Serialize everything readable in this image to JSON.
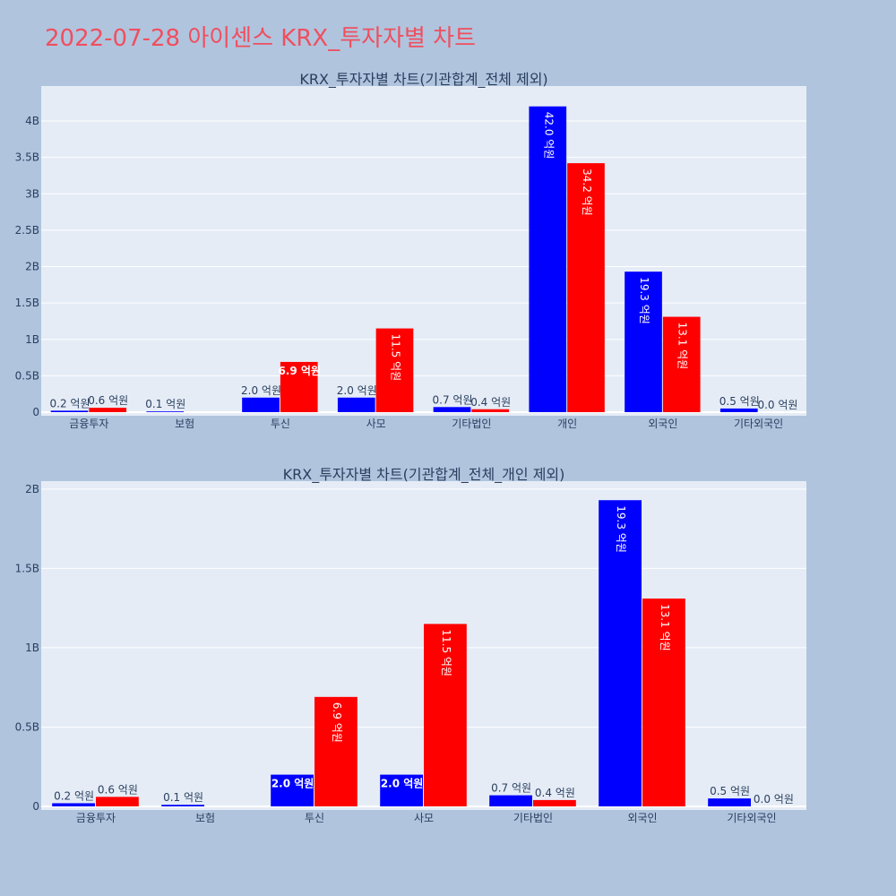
{
  "page": {
    "title": "2022-07-28 아이센스 KRX_투자자별 차트"
  },
  "colors": {
    "background": "#b0c4de",
    "plot_background": "#e5ecf6",
    "series_1": "#0000ff",
    "series_2": "#ff0000",
    "title": "#ef4f5f",
    "text": "#2a3f5f"
  },
  "chart_data": [
    {
      "type": "bar",
      "title": "KRX_투자자별 차트(기관합계_전체 제외)",
      "categories": [
        "금융투자",
        "보험",
        "투신",
        "사모",
        "기타법인",
        "개인",
        "외국인",
        "기타외국인"
      ],
      "series": [
        {
          "color": "#0000ff",
          "values": [
            20000000,
            10000000,
            200000000,
            200000000,
            70000000,
            4200000000,
            1930000000,
            50000000
          ],
          "labels": [
            "0.2 억원",
            "0.1 억원",
            "2.0 억원",
            "2.0 억원",
            "0.7 억원",
            "42.0 억원",
            "19.3 억원",
            "0.5 억원"
          ]
        },
        {
          "color": "#ff0000",
          "values": [
            60000000,
            0,
            690000000,
            1150000000,
            40000000,
            3420000000,
            1310000000,
            0
          ],
          "labels": [
            "0.6 억원",
            "",
            "6.9 억원",
            "11.5 억원",
            "0.4 억원",
            "34.2 억원",
            "13.1 억원",
            "0.0 억원"
          ]
        }
      ],
      "ylim": [
        0,
        4480000000
      ],
      "yticks": [
        0,
        500000000,
        1000000000,
        1500000000,
        2000000000,
        2500000000,
        3000000000,
        3500000000,
        4000000000
      ],
      "ytick_labels": [
        "0",
        "0.5B",
        "1B",
        "1.5B",
        "2B",
        "2.5B",
        "3B",
        "3.5B",
        "4B"
      ],
      "grid": true,
      "legend": "none"
    },
    {
      "type": "bar",
      "title": "KRX_투자자별 차트(기관합계_전체_개인 제외)",
      "categories": [
        "금융투자",
        "보험",
        "투신",
        "사모",
        "기타법인",
        "외국인",
        "기타외국인"
      ],
      "series": [
        {
          "color": "#0000ff",
          "values": [
            20000000,
            10000000,
            200000000,
            200000000,
            70000000,
            1930000000,
            50000000
          ],
          "labels": [
            "0.2 억원",
            "0.1 억원",
            "2.0 억원",
            "2.0 억원",
            "0.7 억원",
            "19.3 억원",
            "0.5 억원"
          ]
        },
        {
          "color": "#ff0000",
          "values": [
            60000000,
            0,
            690000000,
            1150000000,
            40000000,
            1310000000,
            0
          ],
          "labels": [
            "0.6 억원",
            "",
            "6.9 억원",
            "11.5 억원",
            "0.4 억원",
            "13.1 억원",
            "0.0 억원"
          ]
        }
      ],
      "ylim": [
        0,
        2050000000
      ],
      "yticks": [
        0,
        500000000,
        1000000000,
        1500000000,
        2000000000
      ],
      "ytick_labels": [
        "0",
        "0.5B",
        "1B",
        "1.5B",
        "2B"
      ],
      "grid": true,
      "legend": "none"
    }
  ]
}
